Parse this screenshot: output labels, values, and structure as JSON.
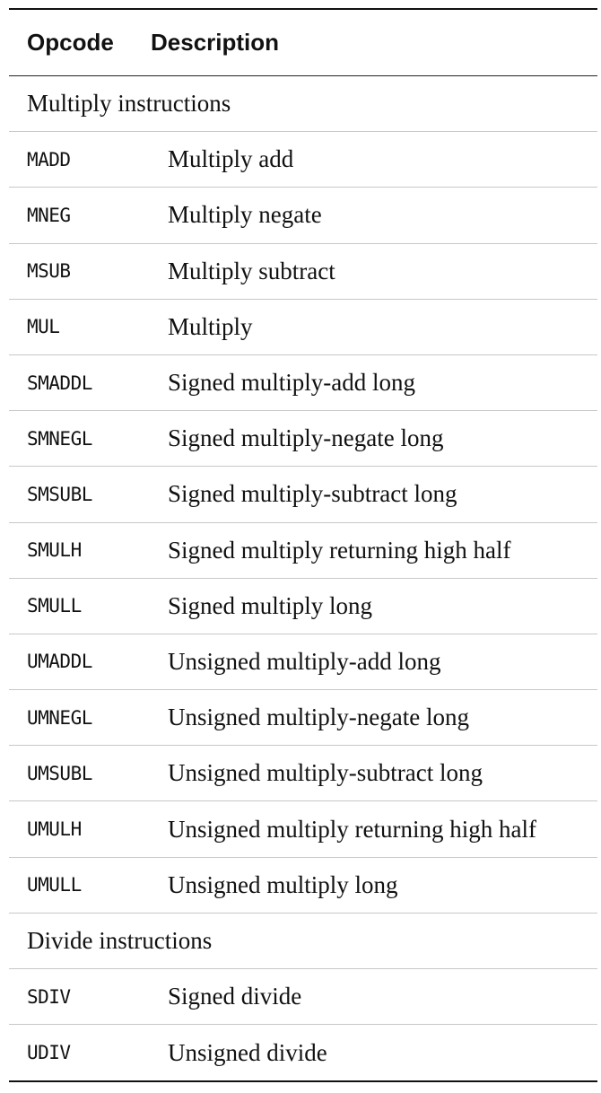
{
  "table": {
    "headers": {
      "opcode": "Opcode",
      "description": "Description"
    },
    "sections": [
      {
        "title": "Multiply instructions",
        "rows": [
          {
            "opcode": "MADD",
            "description": "Multiply add"
          },
          {
            "opcode": "MNEG",
            "description": "Multiply negate"
          },
          {
            "opcode": "MSUB",
            "description": "Multiply subtract"
          },
          {
            "opcode": "MUL",
            "description": "Multiply"
          },
          {
            "opcode": "SMADDL",
            "description": "Signed multiply-add long"
          },
          {
            "opcode": "SMNEGL",
            "description": "Signed multiply-negate long"
          },
          {
            "opcode": "SMSUBL",
            "description": "Signed multiply-subtract long"
          },
          {
            "opcode": "SMULH",
            "description": "Signed multiply returning high half"
          },
          {
            "opcode": "SMULL",
            "description": "Signed multiply long"
          },
          {
            "opcode": "UMADDL",
            "description": "Unsigned multiply-add long"
          },
          {
            "opcode": "UMNEGL",
            "description": "Unsigned multiply-negate long"
          },
          {
            "opcode": "UMSUBL",
            "description": "Unsigned multiply-subtract long"
          },
          {
            "opcode": "UMULH",
            "description": "Unsigned multiply returning high half"
          },
          {
            "opcode": "UMULL",
            "description": "Unsigned multiply long"
          }
        ]
      },
      {
        "title": "Divide instructions",
        "rows": [
          {
            "opcode": "SDIV",
            "description": "Signed divide"
          },
          {
            "opcode": "UDIV",
            "description": "Unsigned divide"
          }
        ]
      }
    ]
  }
}
